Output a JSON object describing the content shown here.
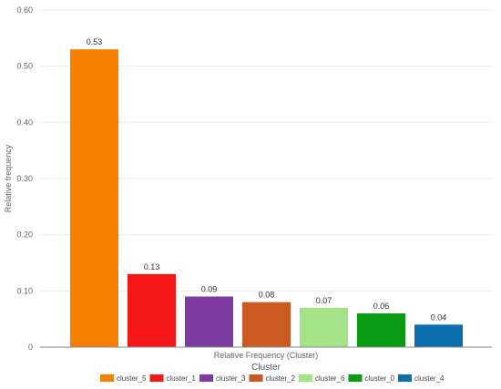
{
  "chart_data": {
    "type": "bar",
    "categories": [
      "cluster_5",
      "cluster_1",
      "cluster_3",
      "cluster_2",
      "cluster_6",
      "cluster_0",
      "cluster_4"
    ],
    "values": [
      0.53,
      0.13,
      0.09,
      0.08,
      0.07,
      0.06,
      0.04
    ],
    "value_labels": [
      "0.53",
      "0.13",
      "0.09",
      "0.08",
      "0.07",
      "0.06",
      "0.04"
    ],
    "colors": [
      "#f78000",
      "#f31717",
      "#7e3ba1",
      "#cb5a22",
      "#a4e387",
      "#0a9b14",
      "#0b6faf"
    ],
    "title": "",
    "xlabel": "Relative Frequency (Cluster)",
    "ylabel": "Relative frequency",
    "ylim": [
      0,
      0.6
    ],
    "yticks": [
      0,
      0.1,
      0.2,
      0.3,
      0.4,
      0.5,
      0.6
    ],
    "ytick_labels": [
      "0",
      "0.10",
      "0.20",
      "0.30",
      "0.40",
      "0.50",
      "0.60"
    ],
    "grid": true,
    "legend": {
      "title": "Cluster",
      "placement": "bottom-center",
      "entries": [
        "cluster_5",
        "cluster_1",
        "cluster_3",
        "cluster_2",
        "cluster_6",
        "cluster_0",
        "cluster_4"
      ]
    }
  }
}
